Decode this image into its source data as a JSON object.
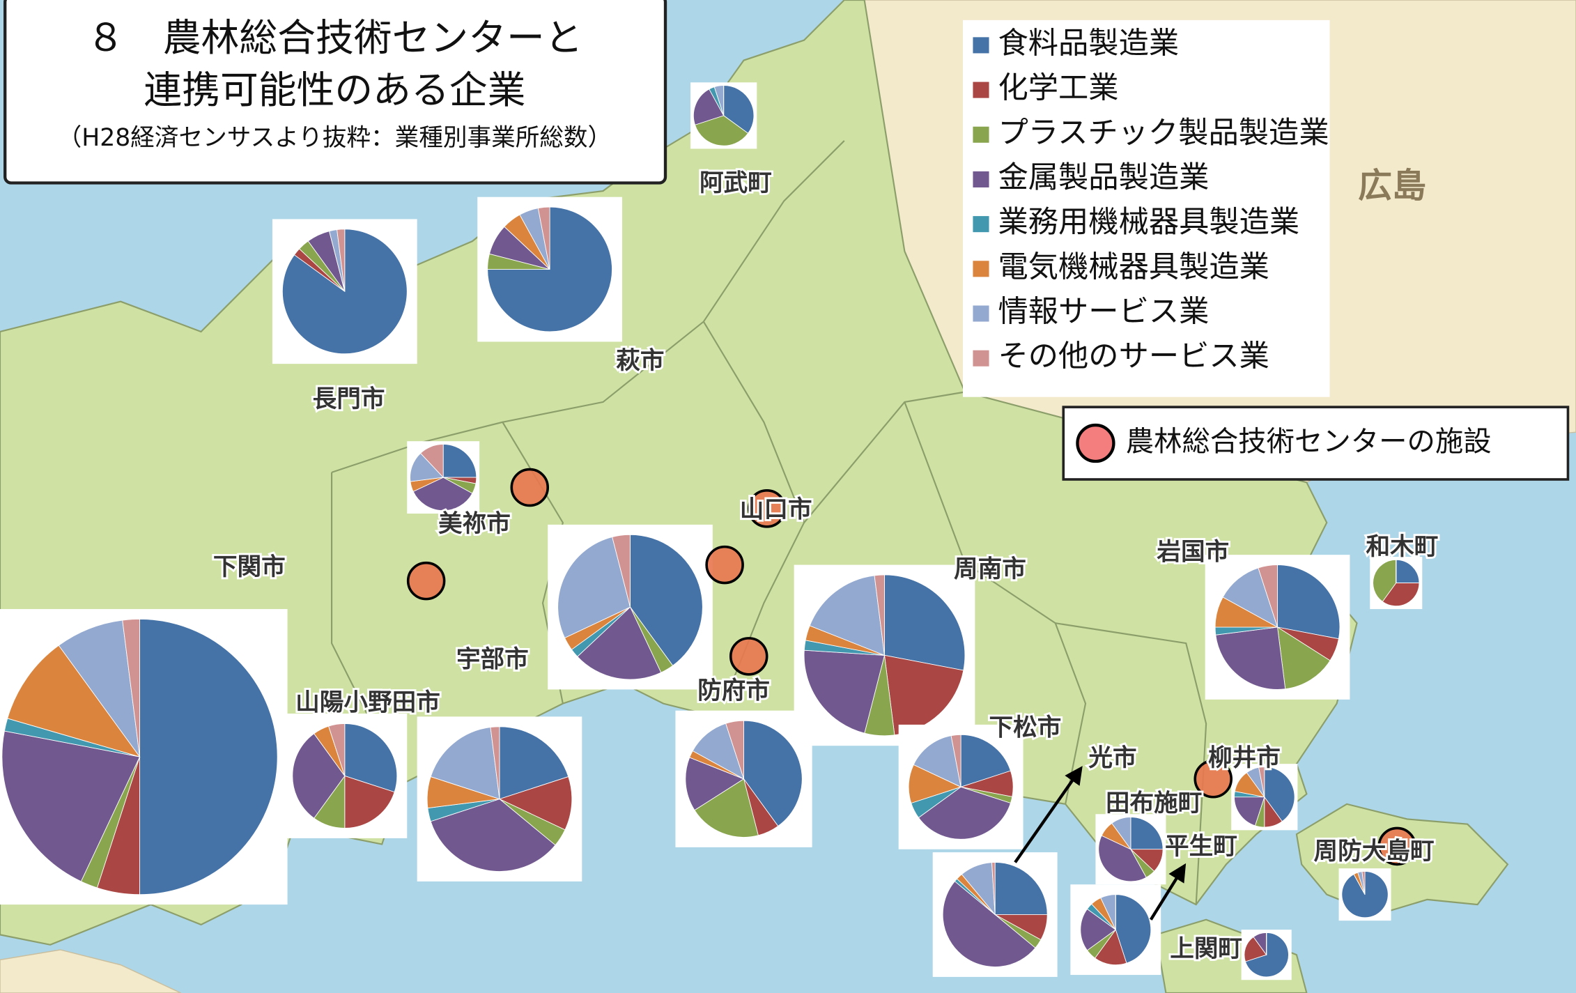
{
  "title_line1": "８　農林総合技術センターと",
  "title_line2": "連携可能性のある企業",
  "subtitle": "（H28経済センサスより抜粋：業種別事業所総数）",
  "legend": {
    "categories": [
      "食料品製造業",
      "化学工業",
      "プラスチック製品製造業",
      "金属製品製造業",
      "業務用機械器具製造業",
      "電気機械器具製造業",
      "情報サービス業",
      "その他のサービス業"
    ],
    "colors": [
      "#4572a7",
      "#aa4643",
      "#89a54e",
      "#71588f",
      "#4198af",
      "#db843d",
      "#93a9cf",
      "#d19392"
    ]
  },
  "facility_legend": "農林総合技術センターの施設",
  "region_label": "広島",
  "pies": [
    {
      "label": "阿武町",
      "values": [
        35,
        0,
        35,
        22,
        3,
        0,
        5,
        0
      ]
    },
    {
      "label": "長門市",
      "values": [
        85,
        2,
        3,
        6,
        0,
        0,
        2,
        2
      ]
    },
    {
      "label": "萩市",
      "values": [
        75,
        0,
        4,
        8,
        0,
        5,
        5,
        3
      ]
    },
    {
      "label": "美祢市",
      "values": [
        25,
        3,
        5,
        35,
        0,
        5,
        15,
        12
      ]
    },
    {
      "label": "山口市",
      "values": [
        40,
        0,
        3,
        20,
        2,
        3,
        28,
        4
      ]
    },
    {
      "label": "下関市",
      "values": [
        50,
        5,
        2,
        21,
        1.5,
        10.5,
        8,
        2
      ]
    },
    {
      "label": "山陽小野田市",
      "values": [
        30,
        20,
        10,
        30,
        0,
        5,
        0,
        5
      ]
    },
    {
      "label": "宇部市",
      "values": [
        20,
        12,
        4,
        34,
        3,
        7,
        18,
        2
      ]
    },
    {
      "label": "防府市",
      "values": [
        40,
        6,
        20,
        15,
        0,
        2,
        12,
        5
      ]
    },
    {
      "label": "周南市",
      "values": [
        28,
        20,
        6,
        22,
        2,
        3,
        17,
        2
      ]
    },
    {
      "label": "下松市",
      "values": [
        20,
        8,
        2,
        35,
        5,
        12,
        15,
        3
      ]
    },
    {
      "label": "岩国市",
      "values": [
        28,
        6,
        14,
        25,
        2,
        8,
        12,
        5
      ]
    },
    {
      "label": "和木町",
      "values": [
        25,
        35,
        40,
        0,
        0,
        0,
        0,
        0
      ]
    },
    {
      "label": "光市",
      "values": [
        25,
        8,
        3,
        50,
        1,
        2,
        10,
        1
      ]
    },
    {
      "label": "田布施町",
      "values": [
        25,
        12,
        5,
        40,
        0,
        8,
        10,
        0
      ]
    },
    {
      "label": "柳井市",
      "values": [
        40,
        10,
        5,
        20,
        3,
        12,
        7,
        3
      ]
    },
    {
      "label": "平生町",
      "values": [
        45,
        15,
        5,
        20,
        3,
        5,
        7,
        0
      ]
    },
    {
      "label": "周防大島町",
      "values": [
        92,
        0,
        0,
        0,
        0,
        3,
        3,
        2
      ]
    },
    {
      "label": "上関町",
      "values": [
        70,
        20,
        0,
        10,
        0,
        0,
        0,
        0
      ]
    }
  ]
}
